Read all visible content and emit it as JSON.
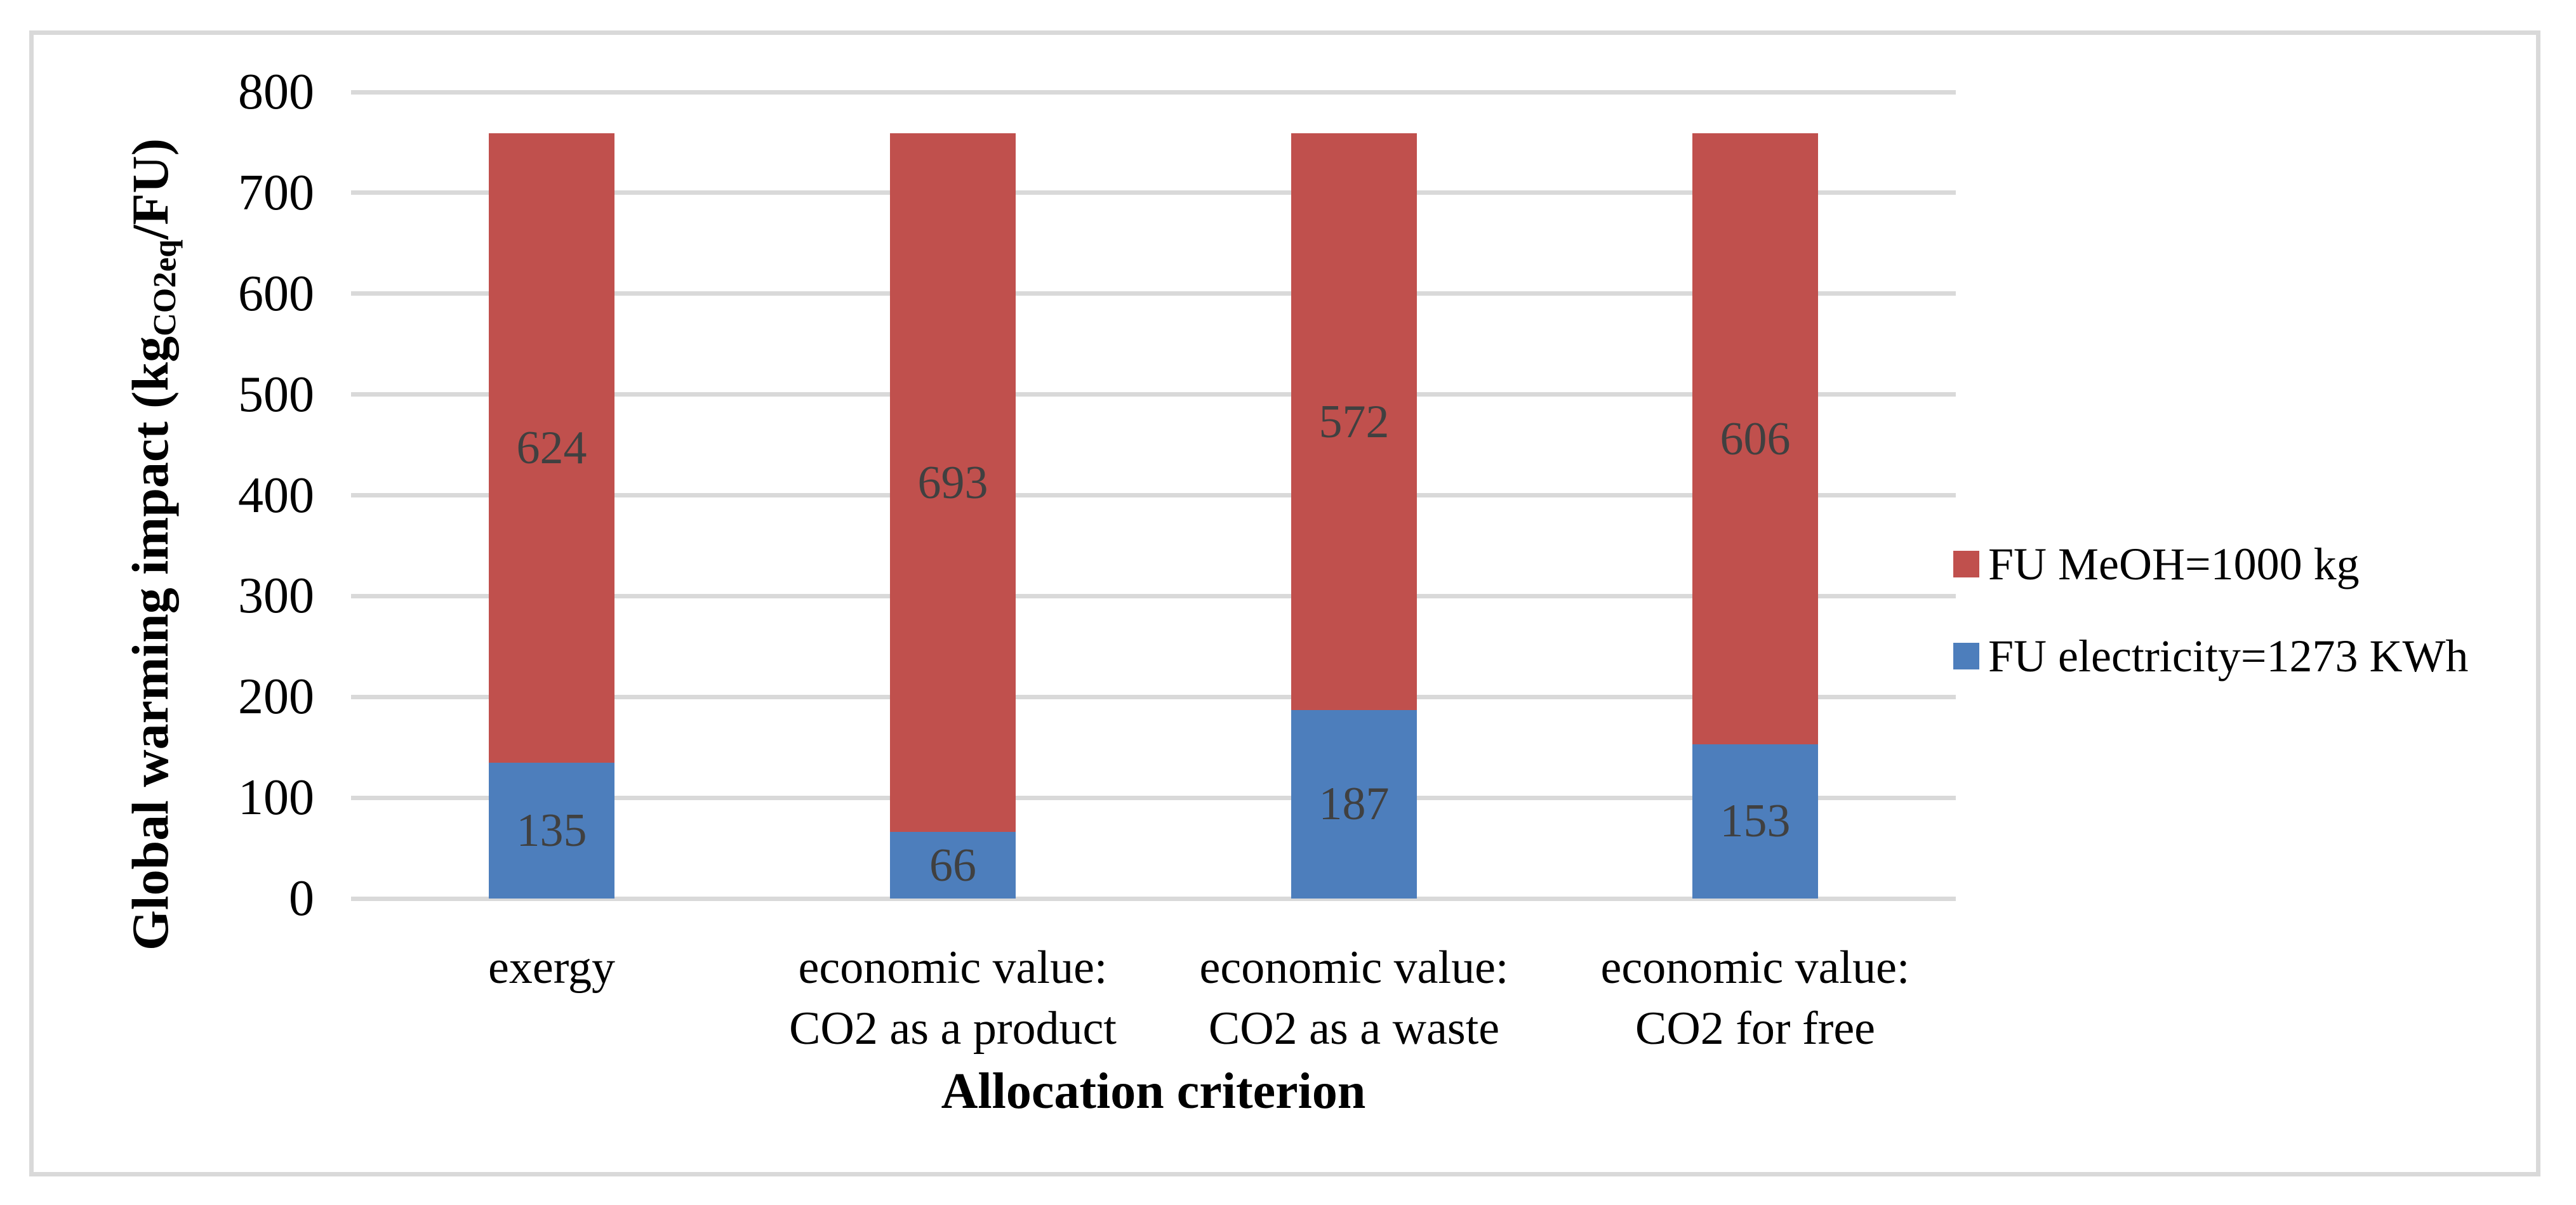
{
  "chart_data": {
    "type": "bar",
    "subtype": "stacked-column",
    "title": "",
    "xlabel": "Allocation criterion",
    "ylabel": "Global warming impact (kgCO2eq/FU)",
    "ylabel_parts": {
      "prefix": "Global warming impact (kg",
      "subscript": "CO2eq",
      "suffix": "/FU)"
    },
    "categories": [
      [
        "exergy"
      ],
      [
        "economic value:",
        "CO2 as a product"
      ],
      [
        "economic value:",
        "CO2 as a waste"
      ],
      [
        "economic value:",
        "CO2 for free"
      ]
    ],
    "series": [
      {
        "name": "FU electricity=1273 KWh",
        "color": "#4D7EBC",
        "values": [
          135,
          66,
          187,
          153
        ]
      },
      {
        "name": "FU MeOH=1000 kg",
        "color": "#C0504D",
        "values": [
          624,
          693,
          572,
          606
        ]
      }
    ],
    "stack_totals": [
      759,
      759,
      759,
      759
    ],
    "ylim": [
      0,
      800
    ],
    "yticks": [
      0,
      100,
      200,
      300,
      400,
      500,
      600,
      700,
      800
    ],
    "grid": "horizontal",
    "gridline_color": "#D9D9D9",
    "frame_color": "#D9D9D9",
    "data_label_color": "#404040",
    "legend_position": "right",
    "legend": [
      {
        "label": "FU MeOH=1000 kg",
        "color": "#C0504D"
      },
      {
        "label": "FU electricity=1273 KWh",
        "color": "#4D7EBC"
      }
    ]
  }
}
